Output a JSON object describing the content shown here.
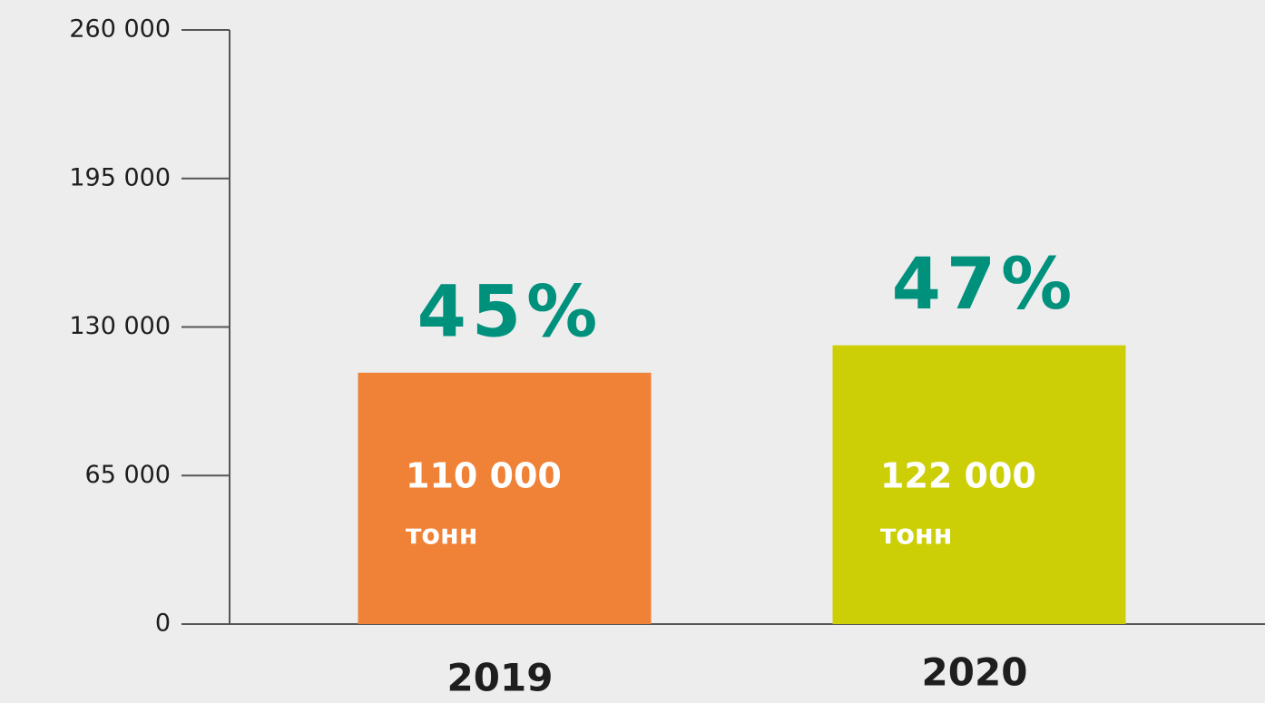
{
  "chart_data": {
    "type": "bar",
    "categories": [
      "2019",
      "2020"
    ],
    "values": [
      110000,
      122000
    ],
    "value_labels": [
      "110 000",
      "122 000"
    ],
    "unit": "тонн",
    "annotations": [
      "45%",
      "47%"
    ],
    "colors": [
      "#f08238",
      "#cccf05"
    ],
    "annotation_color": "#00917d",
    "ylim": [
      0,
      260000
    ],
    "yticks": [
      0,
      {
        "value": 65000,
        "label": "65 000"
      },
      {
        "value": 130000,
        "label": "130 000"
      },
      {
        "value": 195000,
        "label": "195 000"
      },
      {
        "value": 260000,
        "label": "260 000"
      }
    ]
  }
}
